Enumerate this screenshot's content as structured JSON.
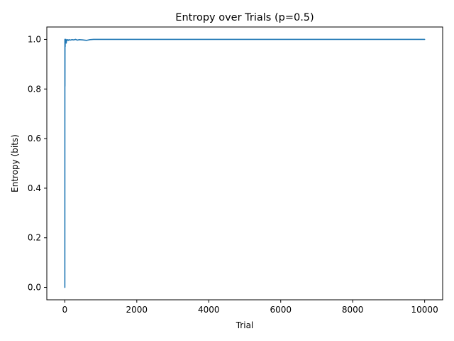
{
  "chart_data": {
    "type": "line",
    "title": "Entropy over Trials (p=0.5)",
    "xlabel": "Trial",
    "ylabel": "Entropy (bits)",
    "xlim": [
      -500,
      10500
    ],
    "ylim": [
      -0.05,
      1.05
    ],
    "grid": false,
    "x_ticks": [
      0,
      2000,
      4000,
      6000,
      8000,
      10000
    ],
    "x_tick_labels": [
      "0",
      "2000",
      "4000",
      "6000",
      "8000",
      "10000"
    ],
    "y_ticks": [
      0.0,
      0.2,
      0.4,
      0.6,
      0.8,
      1.0
    ],
    "y_tick_labels": [
      "0.0",
      "0.2",
      "0.4",
      "0.6",
      "0.8",
      "1.0"
    ],
    "series": [
      {
        "color": "#1f77b4",
        "x": [
          1,
          2,
          3,
          4,
          5,
          6,
          7,
          8,
          10,
          12,
          15,
          20,
          25,
          30,
          40,
          50,
          60,
          80,
          100,
          120,
          150,
          200,
          250,
          300,
          350,
          400,
          500,
          600,
          700,
          800,
          1000,
          1500,
          2000,
          3000,
          4000,
          5000,
          6000,
          7000,
          8000,
          9000,
          10000
        ],
        "y": [
          0.0,
          1.0,
          0.918,
          0.811,
          0.971,
          1.0,
          0.985,
          1.0,
          0.971,
          1.0,
          0.997,
          0.993,
          0.998,
          1.0,
          0.985,
          0.998,
          0.995,
          0.999,
          0.996,
          0.999,
          0.997,
          0.999,
          0.998,
          1.0,
          0.997,
          0.999,
          0.998,
          0.996,
          0.999,
          1.0,
          1.0,
          1.0,
          1.0,
          1.0,
          1.0,
          1.0,
          1.0,
          1.0,
          1.0,
          1.0,
          1.0
        ]
      }
    ]
  }
}
